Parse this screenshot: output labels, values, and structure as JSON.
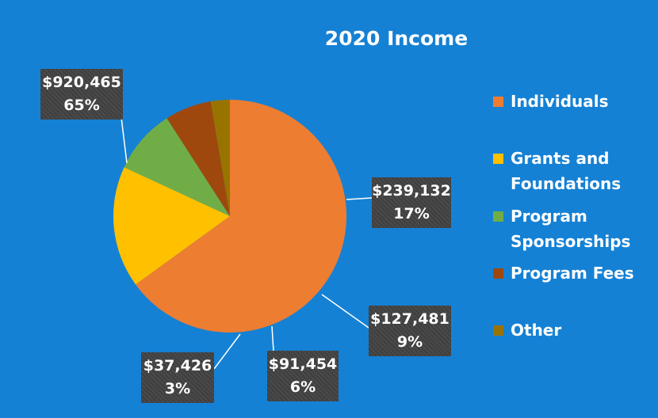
{
  "chart_data": {
    "type": "pie",
    "title": "2020 Income",
    "legend_position": "right",
    "slices": [
      {
        "name": "Individuals",
        "value": 920465,
        "value_label": "$920,465",
        "percent_label": "65%",
        "color": "#ed7d31"
      },
      {
        "name": "Grants and Foundations",
        "value": 239132,
        "value_label": "$239,132",
        "percent_label": "17%",
        "color": "#ffc000"
      },
      {
        "name": "Program Sponsorships",
        "value": 127481,
        "value_label": "$127,481",
        "percent_label": "9%",
        "color": "#70ad47"
      },
      {
        "name": "Program Fees",
        "value": 91454,
        "value_label": "$91,454",
        "percent_label": "6%",
        "color": "#9e480e"
      },
      {
        "name": "Other",
        "value": 37426,
        "value_label": "$37,426",
        "percent_label": "3%",
        "color": "#997300"
      }
    ]
  }
}
